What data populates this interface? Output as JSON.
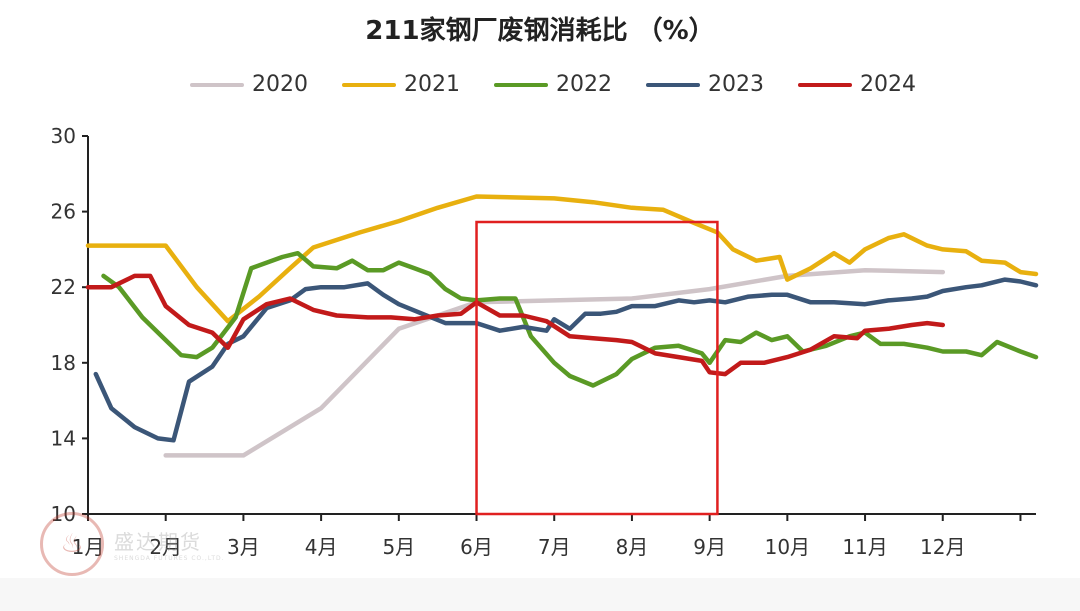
{
  "chart_data": {
    "type": "line",
    "title": "211家钢厂废钢消耗比 （%）",
    "x_categories": [
      "1月",
      "2月",
      "3月",
      "4月",
      "5月",
      "6月",
      "7月",
      "8月",
      "9月",
      "10月",
      "11月",
      "12月"
    ],
    "ylim": [
      10,
      30
    ],
    "yticks": [
      10,
      14,
      18,
      22,
      26,
      30
    ],
    "legend_position": "top",
    "highlight_box": {
      "from_month": 6.0,
      "to_month": 9.1,
      "color": "#e02020"
    },
    "series": [
      {
        "name": "2020",
        "color": "#cfc4c8",
        "points": [
          [
            2,
            13.1
          ],
          [
            3,
            13.1
          ],
          [
            4,
            15.6
          ],
          [
            5,
            19.8
          ],
          [
            6,
            21.2
          ],
          [
            7,
            21.3
          ],
          [
            8,
            21.4
          ],
          [
            9,
            21.9
          ],
          [
            10,
            22.6
          ],
          [
            11,
            22.9
          ],
          [
            12,
            22.8
          ]
        ]
      },
      {
        "name": "2021",
        "color": "#e8b00f",
        "points": [
          [
            1,
            24.2
          ],
          [
            1.5,
            24.2
          ],
          [
            2,
            24.2
          ],
          [
            2.4,
            22.0
          ],
          [
            2.8,
            20.2
          ],
          [
            3.2,
            21.5
          ],
          [
            3.6,
            23.0
          ],
          [
            3.9,
            24.1
          ],
          [
            4.5,
            24.9
          ],
          [
            5,
            25.5
          ],
          [
            5.5,
            26.2
          ],
          [
            6,
            26.8
          ],
          [
            7,
            26.7
          ],
          [
            7.5,
            26.5
          ],
          [
            8,
            26.2
          ],
          [
            8.4,
            26.1
          ],
          [
            8.8,
            25.4
          ],
          [
            9.1,
            24.9
          ],
          [
            9.3,
            24.0
          ],
          [
            9.6,
            23.4
          ],
          [
            9.9,
            23.6
          ],
          [
            10,
            22.4
          ],
          [
            10.3,
            23.0
          ],
          [
            10.6,
            23.8
          ],
          [
            10.8,
            23.3
          ],
          [
            11,
            24.0
          ],
          [
            11.3,
            24.6
          ],
          [
            11.5,
            24.8
          ],
          [
            11.8,
            24.2
          ],
          [
            12,
            24.0
          ],
          [
            12.3,
            23.9
          ],
          [
            12.5,
            23.4
          ],
          [
            12.8,
            23.3
          ],
          [
            13,
            22.8
          ],
          [
            13.2,
            22.7
          ]
        ]
      },
      {
        "name": "2022",
        "color": "#5a9a25",
        "points": [
          [
            1.2,
            22.6
          ],
          [
            1.4,
            22.0
          ],
          [
            1.7,
            20.4
          ],
          [
            2,
            19.2
          ],
          [
            2.2,
            18.4
          ],
          [
            2.4,
            18.3
          ],
          [
            2.6,
            18.8
          ],
          [
            2.9,
            20.4
          ],
          [
            3.1,
            23.0
          ],
          [
            3.5,
            23.6
          ],
          [
            3.7,
            23.8
          ],
          [
            3.9,
            23.1
          ],
          [
            4.2,
            23.0
          ],
          [
            4.4,
            23.4
          ],
          [
            4.6,
            22.9
          ],
          [
            4.8,
            22.9
          ],
          [
            5,
            23.3
          ],
          [
            5.2,
            23.0
          ],
          [
            5.4,
            22.7
          ],
          [
            5.6,
            21.9
          ],
          [
            5.8,
            21.4
          ],
          [
            6,
            21.3
          ],
          [
            6.3,
            21.4
          ],
          [
            6.5,
            21.4
          ],
          [
            6.7,
            19.4
          ],
          [
            7,
            18.0
          ],
          [
            7.2,
            17.3
          ],
          [
            7.5,
            16.8
          ],
          [
            7.8,
            17.4
          ],
          [
            8,
            18.2
          ],
          [
            8.3,
            18.8
          ],
          [
            8.6,
            18.9
          ],
          [
            8.9,
            18.5
          ],
          [
            9,
            18.0
          ],
          [
            9.2,
            19.2
          ],
          [
            9.4,
            19.1
          ],
          [
            9.6,
            19.6
          ],
          [
            9.8,
            19.2
          ],
          [
            10,
            19.4
          ],
          [
            10.2,
            18.6
          ],
          [
            10.5,
            18.9
          ],
          [
            10.8,
            19.4
          ],
          [
            11,
            19.6
          ],
          [
            11.2,
            19.0
          ],
          [
            11.5,
            19.0
          ],
          [
            11.8,
            18.8
          ],
          [
            12,
            18.6
          ],
          [
            12.3,
            18.6
          ],
          [
            12.5,
            18.4
          ],
          [
            12.7,
            19.1
          ],
          [
            13,
            18.6
          ],
          [
            13.2,
            18.3
          ]
        ]
      },
      {
        "name": "2023",
        "color": "#3b5678",
        "points": [
          [
            1.1,
            17.4
          ],
          [
            1.3,
            15.6
          ],
          [
            1.6,
            14.6
          ],
          [
            1.9,
            14.0
          ],
          [
            2.1,
            13.9
          ],
          [
            2.3,
            17.0
          ],
          [
            2.6,
            17.8
          ],
          [
            2.8,
            19.0
          ],
          [
            3,
            19.4
          ],
          [
            3.3,
            20.9
          ],
          [
            3.6,
            21.3
          ],
          [
            3.8,
            21.9
          ],
          [
            4,
            22.0
          ],
          [
            4.3,
            22.0
          ],
          [
            4.6,
            22.2
          ],
          [
            4.8,
            21.6
          ],
          [
            5,
            21.1
          ],
          [
            5.3,
            20.6
          ],
          [
            5.6,
            20.1
          ],
          [
            5.8,
            20.1
          ],
          [
            6,
            20.1
          ],
          [
            6.3,
            19.7
          ],
          [
            6.6,
            19.9
          ],
          [
            6.9,
            19.7
          ],
          [
            7,
            20.3
          ],
          [
            7.2,
            19.8
          ],
          [
            7.4,
            20.6
          ],
          [
            7.6,
            20.6
          ],
          [
            7.8,
            20.7
          ],
          [
            8,
            21.0
          ],
          [
            8.3,
            21.0
          ],
          [
            8.6,
            21.3
          ],
          [
            8.8,
            21.2
          ],
          [
            9,
            21.3
          ],
          [
            9.2,
            21.2
          ],
          [
            9.5,
            21.5
          ],
          [
            9.8,
            21.6
          ],
          [
            10,
            21.6
          ],
          [
            10.3,
            21.2
          ],
          [
            10.6,
            21.2
          ],
          [
            11,
            21.1
          ],
          [
            11.3,
            21.3
          ],
          [
            11.6,
            21.4
          ],
          [
            11.8,
            21.5
          ],
          [
            12,
            21.8
          ],
          [
            12.3,
            22.0
          ],
          [
            12.5,
            22.1
          ],
          [
            12.8,
            22.4
          ],
          [
            13,
            22.3
          ],
          [
            13.2,
            22.1
          ]
        ]
      },
      {
        "name": "2024",
        "color": "#c21a1a",
        "points": [
          [
            1,
            22.0
          ],
          [
            1.3,
            22.0
          ],
          [
            1.6,
            22.6
          ],
          [
            1.8,
            22.6
          ],
          [
            2,
            21.0
          ],
          [
            2.3,
            20.0
          ],
          [
            2.6,
            19.6
          ],
          [
            2.8,
            18.8
          ],
          [
            3,
            20.3
          ],
          [
            3.3,
            21.1
          ],
          [
            3.6,
            21.4
          ],
          [
            3.9,
            20.8
          ],
          [
            4.2,
            20.5
          ],
          [
            4.6,
            20.4
          ],
          [
            4.9,
            20.4
          ],
          [
            5.2,
            20.3
          ],
          [
            5.5,
            20.5
          ],
          [
            5.8,
            20.6
          ],
          [
            6,
            21.2
          ],
          [
            6.3,
            20.5
          ],
          [
            6.6,
            20.5
          ],
          [
            6.9,
            20.2
          ],
          [
            7.2,
            19.4
          ],
          [
            7.5,
            19.3
          ],
          [
            7.8,
            19.2
          ],
          [
            8,
            19.1
          ],
          [
            8.3,
            18.5
          ],
          [
            8.6,
            18.3
          ],
          [
            8.9,
            18.1
          ],
          [
            9,
            17.5
          ],
          [
            9.2,
            17.4
          ],
          [
            9.4,
            18.0
          ],
          [
            9.7,
            18.0
          ],
          [
            10,
            18.3
          ],
          [
            10.3,
            18.7
          ],
          [
            10.6,
            19.4
          ],
          [
            10.9,
            19.3
          ],
          [
            11,
            19.7
          ],
          [
            11.3,
            19.8
          ],
          [
            11.6,
            20.0
          ],
          [
            11.8,
            20.1
          ],
          [
            12,
            20.0
          ]
        ]
      }
    ]
  },
  "watermark": {
    "logo_glyph": "♨",
    "text": "盛达期货",
    "subtext": "SHENGDA FUTURES CO.,LTD."
  }
}
